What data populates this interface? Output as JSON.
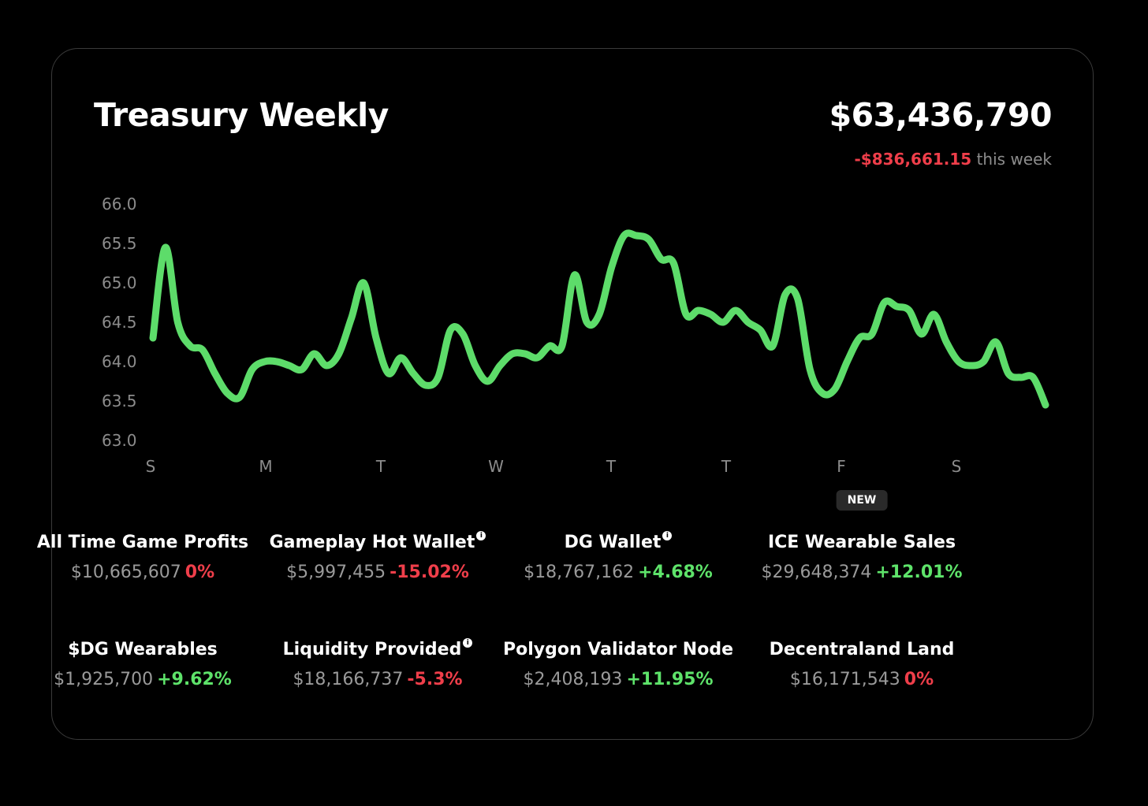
{
  "header": {
    "title": "Treasury Weekly",
    "total": "$63,436,790",
    "change": "-$836,661.15",
    "change_suffix": "this week"
  },
  "colors": {
    "line": "#5ddc6a",
    "positive": "#5ee36a",
    "negative": "#ef3e4a",
    "muted": "#8c8c8c"
  },
  "chart_data": {
    "type": "line",
    "title": "",
    "xlabel": "",
    "ylabel": "",
    "ylim": [
      63.0,
      66.0
    ],
    "yticks": [
      "66.0",
      "65.5",
      "65.0",
      "64.5",
      "64.0",
      "63.5",
      "63.0"
    ],
    "xticks": [
      "S",
      "M",
      "T",
      "W",
      "T",
      "T",
      "F",
      "S"
    ],
    "grid": false,
    "series": [
      {
        "values": [
          64.3,
          65.45,
          64.5,
          64.2,
          64.15,
          63.85,
          63.6,
          63.55,
          63.9,
          64.0,
          64.0,
          63.95,
          63.9,
          64.1,
          63.95,
          64.1,
          64.55,
          65.0,
          64.3,
          63.85,
          64.05,
          63.85,
          63.7,
          63.8,
          64.4,
          64.35,
          63.95,
          63.75,
          63.95,
          64.1,
          64.1,
          64.05,
          64.2,
          64.2,
          65.1,
          64.5,
          64.6,
          65.2,
          65.6,
          65.6,
          65.55,
          65.3,
          65.25,
          64.6,
          64.65,
          64.6,
          64.5,
          64.65,
          64.5,
          64.4,
          64.2,
          64.85,
          64.8,
          63.9,
          63.6,
          63.65,
          64.0,
          64.3,
          64.35,
          64.75,
          64.7,
          64.65,
          64.35,
          64.6,
          64.25,
          64.0,
          63.95,
          64.0,
          64.25,
          63.85,
          63.8,
          63.8,
          63.45
        ]
      }
    ]
  },
  "stats": [
    {
      "label": "All Time Game Profits",
      "amount": "$10,665,607",
      "change": "0%",
      "trend": "down",
      "info": false,
      "badge": ""
    },
    {
      "label": "Gameplay Hot Wallet",
      "amount": "$5,997,455",
      "change": "-15.02%",
      "trend": "down",
      "info": true,
      "badge": ""
    },
    {
      "label": "DG Wallet",
      "amount": "$18,767,162",
      "change": "+4.68%",
      "trend": "up",
      "info": true,
      "badge": ""
    },
    {
      "label": "ICE Wearable Sales",
      "amount": "$29,648,374",
      "change": "+12.01%",
      "trend": "up",
      "info": false,
      "badge": "NEW"
    },
    {
      "label": "$DG Wearables",
      "amount": "$1,925,700",
      "change": "+9.62%",
      "trend": "up",
      "info": false,
      "badge": ""
    },
    {
      "label": "Liquidity Provided",
      "amount": "$18,166,737",
      "change": "-5.3%",
      "trend": "down",
      "info": true,
      "badge": ""
    },
    {
      "label": "Polygon Validator Node",
      "amount": "$2,408,193",
      "change": "+11.95%",
      "trend": "up",
      "info": false,
      "badge": ""
    },
    {
      "label": "Decentraland Land",
      "amount": "$16,171,543",
      "change": "0%",
      "trend": "down",
      "info": false,
      "badge": ""
    }
  ]
}
